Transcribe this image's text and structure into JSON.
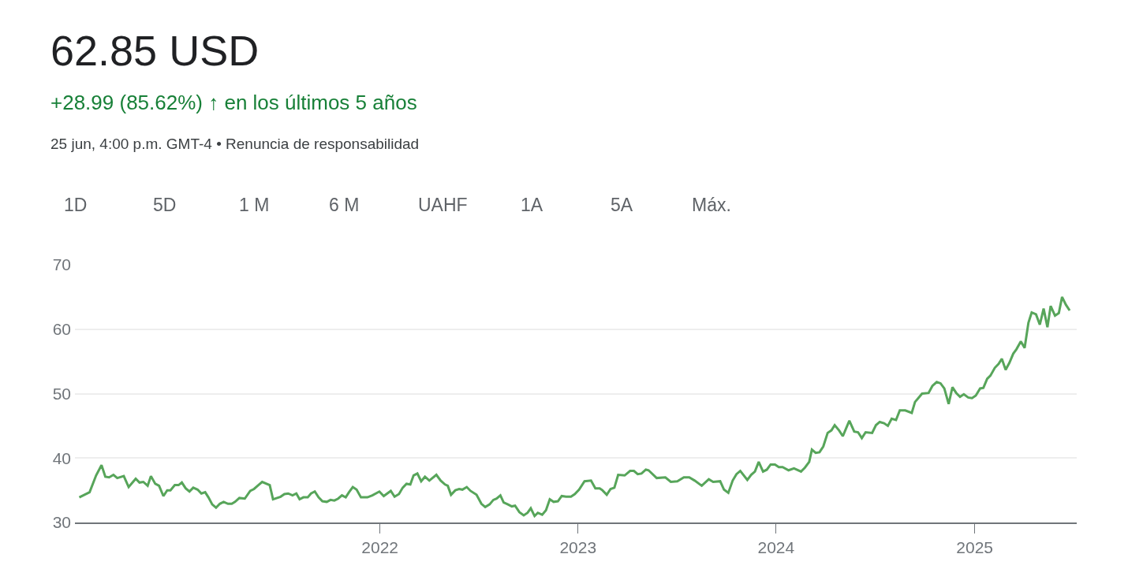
{
  "chart_data": {
    "type": "line",
    "title": "62.85 USD",
    "subtitle": "+28.99 (85.62%) ↑ en los últimos 5 años",
    "annotations": [
      "25 jun, 4:00 p.m. GMT-4 • Renuncia de responsabilidad",
      "1D",
      "5D",
      "1 M",
      "6 M",
      "UAHF",
      "1A",
      "5A",
      "Máx."
    ],
    "x": [
      "2020-06-26",
      "2020-07-15",
      "2020-07-27",
      "2020-08-06",
      "2020-08-13",
      "2020-08-20",
      "2020-08-28",
      "2020-09-04",
      "2020-09-16",
      "2020-09-25",
      "2020-10-08",
      "2020-10-15",
      "2020-10-22",
      "2020-10-30",
      "2020-11-05",
      "2020-11-13",
      "2020-11-20",
      "2020-11-28",
      "2020-12-05",
      "2020-12-11",
      "2020-12-19",
      "2020-12-26",
      "2021-01-01",
      "2021-01-08",
      "2021-01-15",
      "2021-01-22",
      "2021-01-30",
      "2021-02-06",
      "2021-02-13",
      "2021-02-19",
      "2021-02-26",
      "2021-03-05",
      "2021-03-12",
      "2021-03-19",
      "2021-03-27",
      "2021-04-03",
      "2021-04-09",
      "2021-04-17",
      "2021-04-27",
      "2021-05-07",
      "2021-05-14",
      "2021-05-22",
      "2021-05-29",
      "2021-06-12",
      "2021-06-18",
      "2021-07-02",
      "2021-07-09",
      "2021-07-16",
      "2021-07-24",
      "2021-07-31",
      "2021-08-06",
      "2021-08-13",
      "2021-08-21",
      "2021-08-27",
      "2021-09-03",
      "2021-09-10",
      "2021-09-17",
      "2021-09-25",
      "2021-10-02",
      "2021-10-09",
      "2021-10-16",
      "2021-10-23",
      "2021-10-30",
      "2021-11-05",
      "2021-11-12",
      "2021-11-19",
      "2021-11-27",
      "2021-12-09",
      "2021-12-18",
      "2021-12-31",
      "2022-01-08",
      "2022-01-21",
      "2022-01-28",
      "2022-02-05",
      "2022-02-12",
      "2022-02-19",
      "2022-02-26",
      "2022-03-04",
      "2022-03-11",
      "2022-03-18",
      "2022-03-25",
      "2022-04-02",
      "2022-04-15",
      "2022-04-23",
      "2022-05-01",
      "2022-05-06",
      "2022-05-12",
      "2022-05-20",
      "2022-05-27",
      "2022-06-02",
      "2022-06-10",
      "2022-06-17",
      "2022-06-28",
      "2022-07-07",
      "2022-07-14",
      "2022-07-22",
      "2022-07-29",
      "2022-08-04",
      "2022-08-11",
      "2022-08-17",
      "2022-08-25",
      "2022-09-01",
      "2022-09-07",
      "2022-09-15",
      "2022-09-23",
      "2022-09-30",
      "2022-10-06",
      "2022-10-13",
      "2022-10-19",
      "2022-10-27",
      "2022-11-03",
      "2022-11-10",
      "2022-11-17",
      "2022-11-25",
      "2022-12-02",
      "2022-12-10",
      "2022-12-19",
      "2022-12-26",
      "2023-01-03",
      "2023-01-13",
      "2023-01-25",
      "2023-02-02",
      "2023-02-10",
      "2023-02-15",
      "2023-02-23",
      "2023-03-02",
      "2023-03-09",
      "2023-03-16",
      "2023-03-28",
      "2023-04-07",
      "2023-04-14",
      "2023-04-21",
      "2023-04-28",
      "2023-05-06",
      "2023-05-11",
      "2023-05-26",
      "2023-06-11",
      "2023-06-21",
      "2023-07-03",
      "2023-07-15",
      "2023-07-25",
      "2023-08-04",
      "2023-08-17",
      "2023-08-30",
      "2023-09-07",
      "2023-09-20",
      "2023-09-27",
      "2023-10-05",
      "2023-10-13",
      "2023-10-20",
      "2023-10-27",
      "2023-11-09",
      "2023-11-16",
      "2023-11-23",
      "2023-11-30",
      "2023-12-08",
      "2023-12-15",
      "2023-12-22",
      "2023-12-30",
      "2024-01-06",
      "2024-01-13",
      "2024-01-24",
      "2024-02-03",
      "2024-02-16",
      "2024-02-23",
      "2024-03-02",
      "2024-03-07",
      "2024-03-14",
      "2024-03-21",
      "2024-03-28",
      "2024-04-05",
      "2024-04-12",
      "2024-04-18",
      "2024-04-26",
      "2024-05-03",
      "2024-05-09",
      "2024-05-15",
      "2024-05-24",
      "2024-05-31",
      "2024-06-07",
      "2024-06-14",
      "2024-06-26",
      "2024-07-03",
      "2024-07-10",
      "2024-07-18",
      "2024-07-25",
      "2024-08-01",
      "2024-08-09",
      "2024-08-16",
      "2024-08-26",
      "2024-09-07",
      "2024-09-13",
      "2024-09-19",
      "2024-09-26",
      "2024-10-08",
      "2024-10-15",
      "2024-10-23",
      "2024-10-30",
      "2024-11-06",
      "2024-11-14",
      "2024-11-21",
      "2024-11-28",
      "2024-12-05",
      "2024-12-12",
      "2024-12-20",
      "2024-12-27",
      "2025-01-03",
      "2025-01-11",
      "2025-01-17",
      "2025-01-24",
      "2025-01-30",
      "2025-02-07",
      "2025-02-14",
      "2025-02-20",
      "2025-02-27",
      "2025-03-06",
      "2025-03-13",
      "2025-03-19",
      "2025-03-27",
      "2025-04-03",
      "2025-04-10",
      "2025-04-16",
      "2025-04-24",
      "2025-05-01",
      "2025-05-08",
      "2025-05-15",
      "2025-05-21",
      "2025-05-29",
      "2025-06-05",
      "2025-06-11",
      "2025-06-18",
      "2025-06-25"
    ],
    "series": [
      {
        "color": "#57a55a",
        "values": [
          33.9,
          34.7,
          37.3,
          38.9,
          37.1,
          37.0,
          37.4,
          36.9,
          37.2,
          35.5,
          36.8,
          36.2,
          36.3,
          35.7,
          37.2,
          36.0,
          35.7,
          34.1,
          35.0,
          35.0,
          35.8,
          35.8,
          36.2,
          35.3,
          34.8,
          35.4,
          35.1,
          34.5,
          34.7,
          33.9,
          32.8,
          32.3,
          32.9,
          33.2,
          32.9,
          32.9,
          33.2,
          33.8,
          33.7,
          34.9,
          35.2,
          35.8,
          36.3,
          35.8,
          33.6,
          34.0,
          34.4,
          34.5,
          34.2,
          34.5,
          33.6,
          33.9,
          33.9,
          34.5,
          34.8,
          33.9,
          33.3,
          33.2,
          33.5,
          33.4,
          33.7,
          34.2,
          33.9,
          34.7,
          35.5,
          35.1,
          33.9,
          33.9,
          34.2,
          34.8,
          34.1,
          34.9,
          34.0,
          34.4,
          35.4,
          36.0,
          35.9,
          37.3,
          37.6,
          36.4,
          37.1,
          36.5,
          37.4,
          36.5,
          35.9,
          35.7,
          34.3,
          35.0,
          35.2,
          35.1,
          35.5,
          34.9,
          34.3,
          32.9,
          32.4,
          32.8,
          33.5,
          33.7,
          34.2,
          33.1,
          32.8,
          32.5,
          32.6,
          31.6,
          31.1,
          31.5,
          32.2,
          31.0,
          31.5,
          31.2,
          31.9,
          33.6,
          33.2,
          33.3,
          34.1,
          34.0,
          34.0,
          34.4,
          35.1,
          36.4,
          36.5,
          35.3,
          35.3,
          35.0,
          34.3,
          35.2,
          35.4,
          37.4,
          37.3,
          38.0,
          38.0,
          37.5,
          37.6,
          38.2,
          38.1,
          36.9,
          37.0,
          36.3,
          36.4,
          37.0,
          37.0,
          36.5,
          35.7,
          36.7,
          36.3,
          36.4,
          35.1,
          34.6,
          36.5,
          37.5,
          38.0,
          36.6,
          37.4,
          37.9,
          39.4,
          37.9,
          38.2,
          39.0,
          39.0,
          38.6,
          38.6,
          38.1,
          38.4,
          37.9,
          38.5,
          39.4,
          41.3,
          40.8,
          40.9,
          41.8,
          43.9,
          44.3,
          45.1,
          44.3,
          43.4,
          44.6,
          45.8,
          44.1,
          44.0,
          43.1,
          44.0,
          43.9,
          45.1,
          45.6,
          45.4,
          45.0,
          46.1,
          45.9,
          47.4,
          47.4,
          47.0,
          48.7,
          49.3,
          50.0,
          50.1,
          51.2,
          51.8,
          51.6,
          50.8,
          48.4,
          51.0,
          50.1,
          49.5,
          49.9,
          49.4,
          49.3,
          49.7,
          50.8,
          50.9,
          52.3,
          52.8,
          54.0,
          54.6,
          55.4,
          53.7,
          54.8,
          56.2,
          56.9,
          58.1,
          57.1,
          61.0,
          62.6,
          62.3,
          60.7,
          63.2,
          60.3,
          63.6,
          62.1,
          62.5,
          65.0,
          63.8,
          62.9
        ]
      }
    ],
    "xlim": [
      "2020-06-18",
      "2025-07-08"
    ],
    "xticks": [
      {
        "value": "2022-01-01",
        "label": "2022"
      },
      {
        "value": "2023-01-01",
        "label": "2023"
      },
      {
        "value": "2024-01-01",
        "label": "2024"
      },
      {
        "value": "2025-01-01",
        "label": "2025"
      }
    ],
    "ylim": [
      30,
      70
    ],
    "yticks": [
      30,
      40,
      50,
      60,
      70
    ],
    "grid": "y",
    "line_style": "solid"
  }
}
